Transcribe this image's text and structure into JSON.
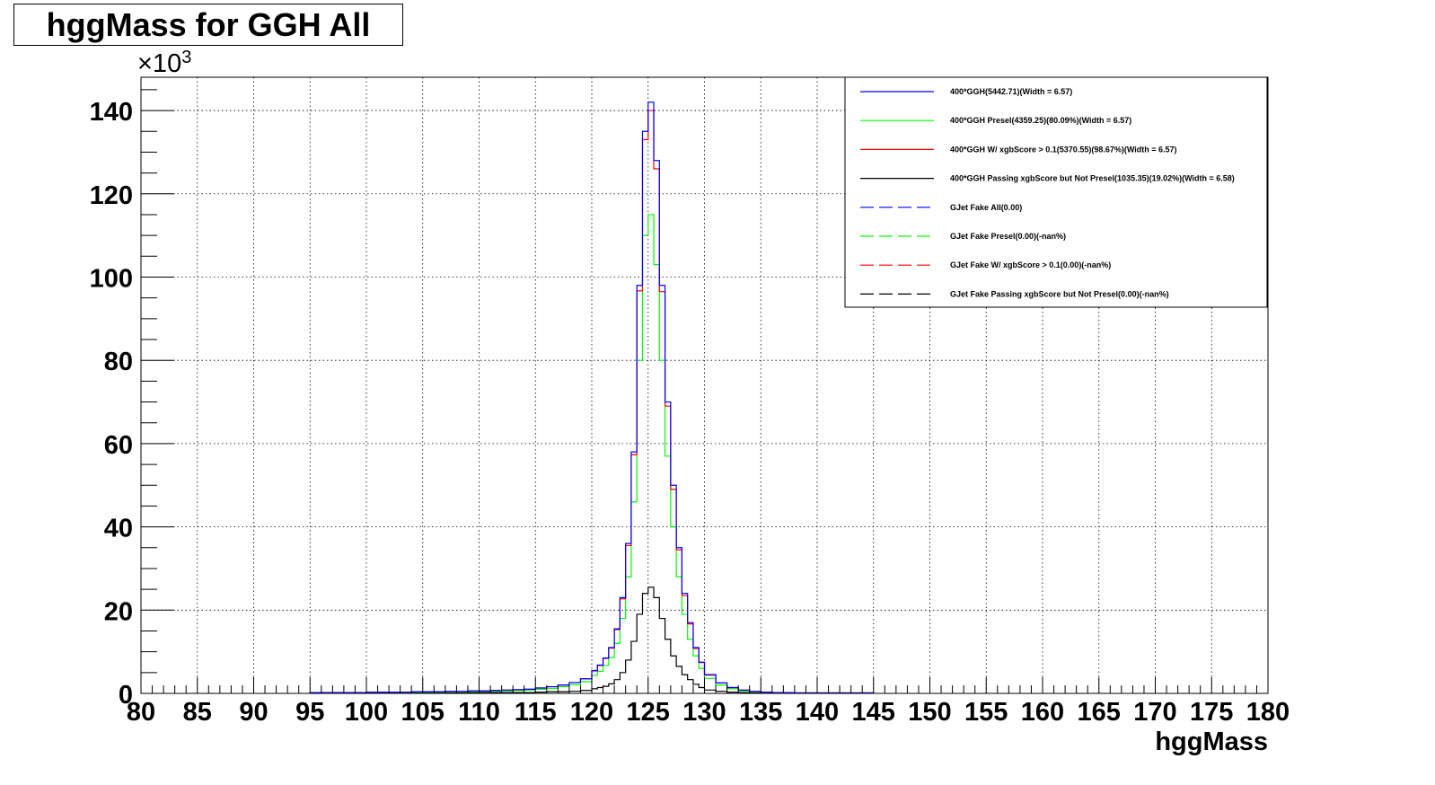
{
  "title": "hggMass for GGH All",
  "chart_data": {
    "type": "line",
    "title": "hggMass for GGH All",
    "xlabel": "hggMass",
    "ylabel": "",
    "y_exponent": "×10",
    "y_exponent_power": "3",
    "xlim": [
      80,
      180
    ],
    "ylim": [
      0,
      148
    ],
    "x_ticks": [
      80,
      85,
      90,
      95,
      100,
      105,
      110,
      115,
      120,
      125,
      130,
      135,
      140,
      145,
      150,
      155,
      160,
      165,
      170,
      175,
      180
    ],
    "y_ticks": [
      0,
      20,
      40,
      60,
      80,
      100,
      120,
      140
    ],
    "grid": true,
    "legend_position": "top-right",
    "bin_edges": [
      95,
      96,
      97,
      98,
      99,
      100,
      101,
      102,
      103,
      104,
      105,
      106,
      107,
      108,
      109,
      110,
      111,
      112,
      113,
      114,
      115,
      116,
      117,
      118,
      119,
      120,
      120.5,
      121,
      121.5,
      122,
      122.5,
      123,
      123.5,
      124,
      124.5,
      125,
      125.5,
      126,
      126.5,
      127,
      127.5,
      128,
      128.5,
      129,
      129.5,
      130,
      131,
      132,
      133,
      134,
      135,
      136,
      137,
      138,
      139,
      140,
      141,
      142,
      143,
      144,
      145
    ],
    "series": [
      {
        "name": "400*GGH(5442.71)(Width = 6.57)",
        "color": "#0000ff",
        "dash": "solid",
        "values": [
          0.2,
          0.2,
          0.2,
          0.2,
          0.2,
          0.3,
          0.3,
          0.3,
          0.3,
          0.4,
          0.4,
          0.4,
          0.5,
          0.5,
          0.6,
          0.6,
          0.7,
          0.8,
          0.9,
          1.0,
          1.3,
          1.6,
          2.0,
          2.6,
          3.5,
          5.5,
          6.8,
          8.5,
          11.0,
          15.5,
          23.0,
          36.0,
          58.0,
          98.0,
          135.0,
          142.0,
          128.0,
          98.0,
          70.0,
          50.0,
          35.0,
          24.0,
          17.0,
          11.0,
          7.5,
          4.5,
          2.5,
          1.4,
          0.8,
          0.5,
          0.3,
          0.2,
          0.2,
          0.1,
          0.1,
          0.1,
          0.1,
          0.1,
          0.1,
          0.1
        ]
      },
      {
        "name": "400*GGH Presel(4359.25)(80.09%)(Width = 6.57)",
        "color": "#00ff00",
        "dash": "solid",
        "values": [
          0.1,
          0.1,
          0.1,
          0.1,
          0.1,
          0.2,
          0.2,
          0.2,
          0.2,
          0.3,
          0.3,
          0.3,
          0.4,
          0.4,
          0.4,
          0.5,
          0.5,
          0.6,
          0.7,
          0.8,
          1.0,
          1.2,
          1.6,
          2.1,
          2.8,
          4.3,
          5.3,
          6.7,
          8.6,
          12.0,
          18.0,
          28.0,
          46.0,
          80.0,
          110.0,
          115.0,
          103.0,
          80.0,
          57.0,
          40.0,
          28.0,
          19.0,
          13.0,
          9.0,
          6.0,
          3.6,
          2.0,
          1.1,
          0.6,
          0.4,
          0.2,
          0.2,
          0.1,
          0.1,
          0.1,
          0.1,
          0.1,
          0.1,
          0.1,
          0.1
        ]
      },
      {
        "name": "400*GGH W/ xgbScore > 0.1(5370.55)(98.67%)(Width = 6.57)",
        "color": "#ff0000",
        "dash": "solid",
        "values": [
          0.2,
          0.2,
          0.2,
          0.2,
          0.2,
          0.3,
          0.3,
          0.3,
          0.3,
          0.4,
          0.4,
          0.4,
          0.5,
          0.5,
          0.6,
          0.6,
          0.7,
          0.8,
          0.9,
          1.0,
          1.3,
          1.6,
          2.0,
          2.6,
          3.5,
          5.4,
          6.7,
          8.4,
          10.9,
          15.3,
          22.7,
          35.5,
          57.3,
          96.7,
          133.0,
          140.0,
          126.0,
          96.5,
          69.0,
          49.0,
          34.5,
          23.5,
          16.7,
          10.8,
          7.4,
          4.4,
          2.5,
          1.4,
          0.8,
          0.5,
          0.3,
          0.2,
          0.2,
          0.1,
          0.1,
          0.1,
          0.1,
          0.1,
          0.1,
          0.1
        ]
      },
      {
        "name": "400*GGH Passing xgbScore but Not Presel(1035.35)(19.02%)(Width = 6.58)",
        "color": "#000000",
        "dash": "solid",
        "values": [
          0.05,
          0.05,
          0.05,
          0.05,
          0.05,
          0.1,
          0.1,
          0.1,
          0.1,
          0.1,
          0.1,
          0.1,
          0.1,
          0.1,
          0.2,
          0.2,
          0.2,
          0.2,
          0.2,
          0.2,
          0.3,
          0.4,
          0.4,
          0.5,
          0.7,
          1.1,
          1.4,
          1.7,
          2.3,
          3.3,
          5.0,
          8.0,
          12.5,
          19.0,
          24.0,
          25.5,
          23.0,
          18.0,
          13.0,
          9.0,
          6.5,
          4.5,
          3.3,
          2.2,
          1.4,
          0.8,
          0.5,
          0.3,
          0.2,
          0.1,
          0.1,
          0.05,
          0.05,
          0.05,
          0.05,
          0.05,
          0.05,
          0.05,
          0.05,
          0.05
        ]
      },
      {
        "name": "GJet Fake All(0.00)",
        "color": "#0000ff",
        "dash": "dashed",
        "values": []
      },
      {
        "name": "GJet Fake Presel(0.00)(-nan%)",
        "color": "#00ff00",
        "dash": "dashed",
        "values": []
      },
      {
        "name": "GJet Fake W/ xgbScore > 0.1(0.00)(-nan%)",
        "color": "#ff0000",
        "dash": "dashed",
        "values": []
      },
      {
        "name": "GJet Fake Passing xgbScore but Not Presel(0.00)(-nan%)",
        "color": "#000000",
        "dash": "dashed",
        "values": []
      }
    ]
  }
}
